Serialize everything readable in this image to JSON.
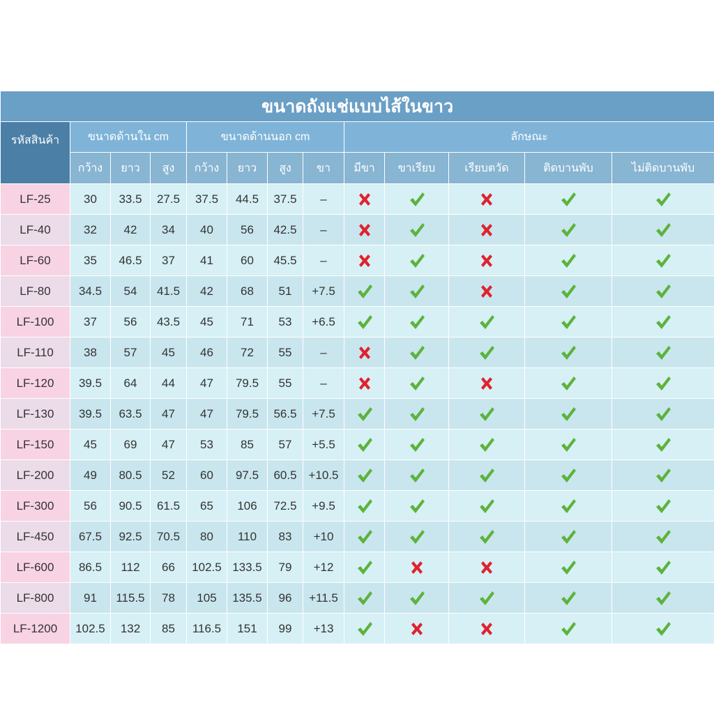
{
  "title": "ขนาดถังแช่แบบไส้ในขาว",
  "header": {
    "code": "รหัสสินค้า",
    "inner": "ขนาดด้านใน cm",
    "outer": "ขนาดด้านนอก cm",
    "features": "ลักษณะ",
    "columns": [
      "กว้าง",
      "ยาว",
      "สูง",
      "กว้าง",
      "ยาว",
      "สูง",
      "ขา",
      "มีขา",
      "ขาเรียบ",
      "เรียบตวัด",
      "ติดบานพับ",
      "ไม่ติดบานพับ"
    ]
  },
  "rows": [
    {
      "code": "LF-25",
      "sizes": [
        30,
        33.5,
        27.5,
        37.5,
        44.5,
        37.5,
        "–"
      ],
      "features": [
        false,
        true,
        false,
        true,
        true
      ]
    },
    {
      "code": "LF-40",
      "sizes": [
        32,
        42,
        34,
        40,
        56,
        42.5,
        "–"
      ],
      "features": [
        false,
        true,
        false,
        true,
        true
      ]
    },
    {
      "code": "LF-60",
      "sizes": [
        35,
        46.5,
        37,
        41,
        60,
        45.5,
        "–"
      ],
      "features": [
        false,
        true,
        false,
        true,
        true
      ]
    },
    {
      "code": "LF-80",
      "sizes": [
        34.5,
        54,
        41.5,
        42,
        68,
        51,
        "+7.5"
      ],
      "features": [
        true,
        true,
        false,
        true,
        true
      ]
    },
    {
      "code": "LF-100",
      "sizes": [
        37,
        56,
        43.5,
        45,
        71,
        53,
        "+6.5"
      ],
      "features": [
        true,
        true,
        true,
        true,
        true
      ]
    },
    {
      "code": "LF-110",
      "sizes": [
        38,
        57,
        45,
        46,
        72,
        55,
        "–"
      ],
      "features": [
        false,
        true,
        true,
        true,
        true
      ]
    },
    {
      "code": "LF-120",
      "sizes": [
        39.5,
        64,
        44,
        47,
        79.5,
        55,
        "–"
      ],
      "features": [
        false,
        true,
        false,
        true,
        true
      ]
    },
    {
      "code": "LF-130",
      "sizes": [
        39.5,
        63.5,
        47,
        47,
        79.5,
        56.5,
        "+7.5"
      ],
      "features": [
        true,
        true,
        true,
        true,
        true
      ]
    },
    {
      "code": "LF-150",
      "sizes": [
        45,
        69,
        47,
        53,
        85,
        57,
        "+5.5"
      ],
      "features": [
        true,
        true,
        true,
        true,
        true
      ]
    },
    {
      "code": "LF-200",
      "sizes": [
        49,
        80.5,
        52,
        60,
        97.5,
        60.5,
        "+10.5"
      ],
      "features": [
        true,
        true,
        true,
        true,
        true
      ]
    },
    {
      "code": "LF-300",
      "sizes": [
        56,
        90.5,
        61.5,
        65,
        106,
        72.5,
        "+9.5"
      ],
      "features": [
        true,
        true,
        true,
        true,
        true
      ]
    },
    {
      "code": "LF-450",
      "sizes": [
        67.5,
        92.5,
        70.5,
        80,
        110,
        83,
        "+10"
      ],
      "features": [
        true,
        true,
        true,
        true,
        true
      ]
    },
    {
      "code": "LF-600",
      "sizes": [
        86.5,
        112,
        66,
        102.5,
        133.5,
        79,
        "+12"
      ],
      "features": [
        true,
        false,
        false,
        true,
        true
      ]
    },
    {
      "code": "LF-800",
      "sizes": [
        91,
        115.5,
        78,
        105,
        135.5,
        96,
        "+11.5"
      ],
      "features": [
        true,
        true,
        true,
        true,
        true
      ]
    },
    {
      "code": "LF-1200",
      "sizes": [
        102.5,
        132,
        85,
        116.5,
        151,
        99,
        "+13"
      ],
      "features": [
        true,
        false,
        false,
        true,
        true
      ]
    }
  ]
}
